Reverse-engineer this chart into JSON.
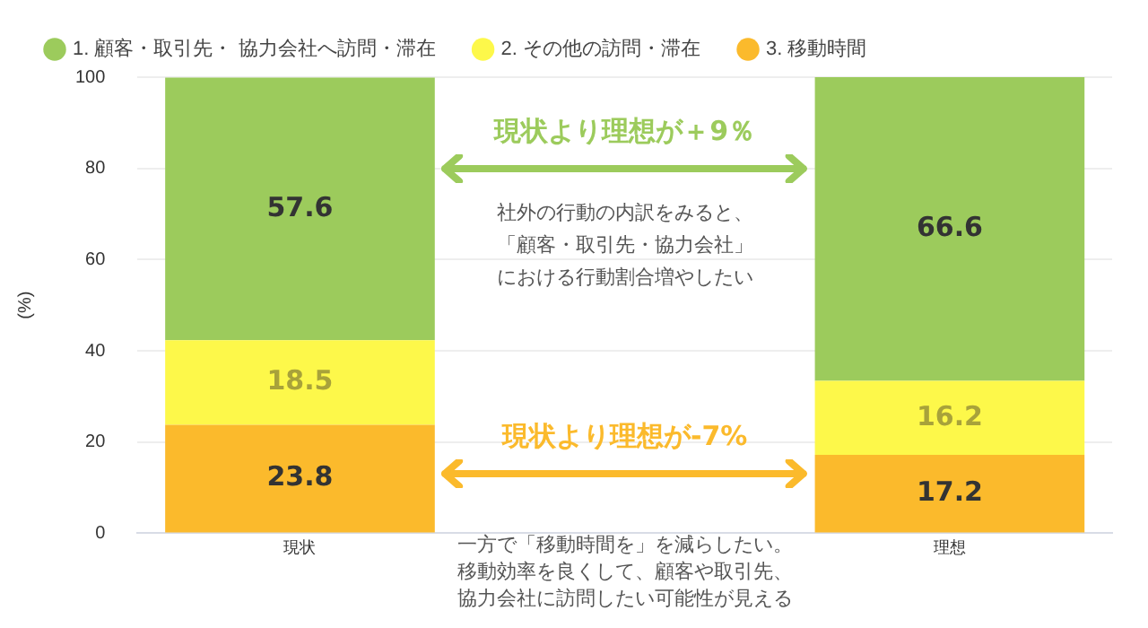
{
  "chart_data": {
    "type": "bar",
    "stacked": true,
    "ylabel": "(%)",
    "categories": [
      "現状",
      null,
      "理想"
    ],
    "series": [
      {
        "name": "3. 移動時間",
        "color": "#fbba2c",
        "values": [
          23.8,
          null,
          17.2
        ]
      },
      {
        "name": "2. その他の訪問・滞在",
        "color": "#fdf84a",
        "values": [
          18.5,
          null,
          16.2
        ]
      },
      {
        "name": "1. 顧客・取引先・ 協力会社へ訪問・滞在",
        "color": "#9ccb5c",
        "values": [
          57.6,
          null,
          66.6
        ]
      }
    ],
    "ylim": [
      0,
      100
    ],
    "yticks": [
      0,
      20,
      40,
      60,
      80,
      100
    ],
    "grid": "y",
    "legend": "top left",
    "data_labels": true,
    "annotations": [
      "現状より理想が＋9％",
      "社外の行動の内訳をみると、",
      "「顧客・取引先・協力会社」",
      "における行動割合増やしたい",
      "現状より理想が-7%",
      "一方で「移動時間を」を減らしたい。",
      "移動効率を良くして、顧客や取引先、",
      "協力会社に訪問したい可能性が見える"
    ]
  }
}
